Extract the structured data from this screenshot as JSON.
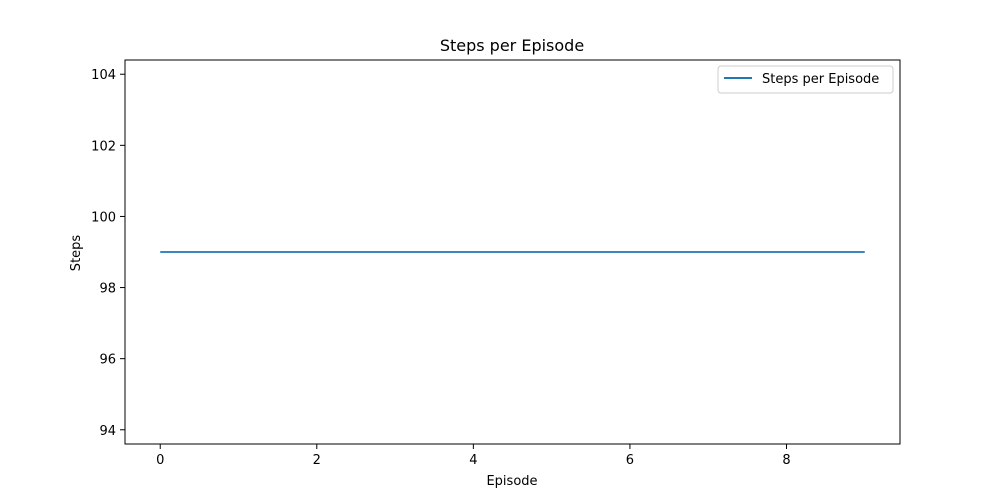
{
  "chart_data": {
    "type": "line",
    "title": "Steps per Episode",
    "xlabel": "Episode",
    "ylabel": "Steps",
    "xlim": [
      -0.45,
      9.45
    ],
    "ylim": [
      93.6,
      104.4
    ],
    "xticks": [
      0,
      2,
      4,
      6,
      8
    ],
    "yticks": [
      94,
      96,
      98,
      100,
      102,
      104
    ],
    "grid": false,
    "legend_position": "top-right",
    "series": [
      {
        "name": "Steps per Episode",
        "color": "#1f77b4",
        "x": [
          0,
          1,
          2,
          3,
          4,
          5,
          6,
          7,
          8,
          9
        ],
        "y": [
          99,
          99,
          99,
          99,
          99,
          99,
          99,
          99,
          99,
          99
        ]
      }
    ]
  }
}
